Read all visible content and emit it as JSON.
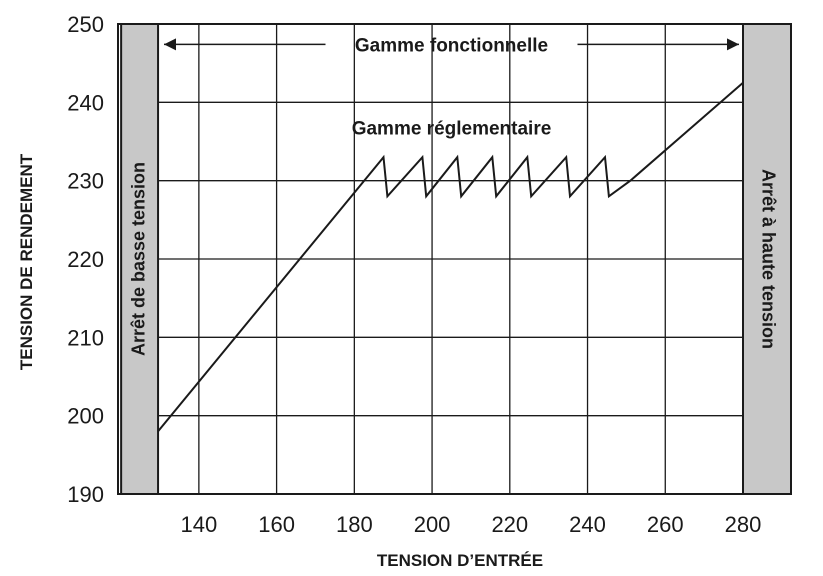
{
  "chart_data": {
    "type": "line",
    "xlabel": "TENSION D’ENTRÉE",
    "ylabel": "TENSION DE RENDEMENT",
    "xlim": [
      129.5,
      280
    ],
    "ylim": [
      190,
      250
    ],
    "x_ticks": [
      140,
      160,
      180,
      200,
      220,
      240,
      260,
      280
    ],
    "y_ticks": [
      190,
      200,
      210,
      220,
      230,
      240,
      250
    ],
    "grid": true,
    "series": [
      {
        "x": [
          129.5,
          187.5,
          188.5,
          197.5,
          198.5,
          206.5,
          207.5,
          215.5,
          216.5,
          224.5,
          225.5,
          234.5,
          235.5,
          244.5,
          245.5,
          251,
          280
        ],
        "y": [
          198,
          233,
          228,
          233,
          228,
          233,
          228,
          233,
          228,
          233,
          228,
          233,
          228,
          233,
          228,
          230,
          242.5
        ]
      }
    ],
    "shaded_regions": [
      {
        "label": "Arrêt de basse tension",
        "x_from": 120,
        "x_to": 129.5,
        "color": "#c8c8c8"
      },
      {
        "label": "Arrêt à haute tension",
        "x_from": 280,
        "x_to": 294,
        "color": "#c8c8c8"
      }
    ],
    "annotations": [
      {
        "text": "Gamme fonctionnelle",
        "type": "double-arrow",
        "x_from": 130,
        "x_to": 280,
        "y": 247.4
      },
      {
        "text": "Gamme réglementaire",
        "type": "label",
        "x": 205,
        "y": 236.8
      }
    ]
  }
}
